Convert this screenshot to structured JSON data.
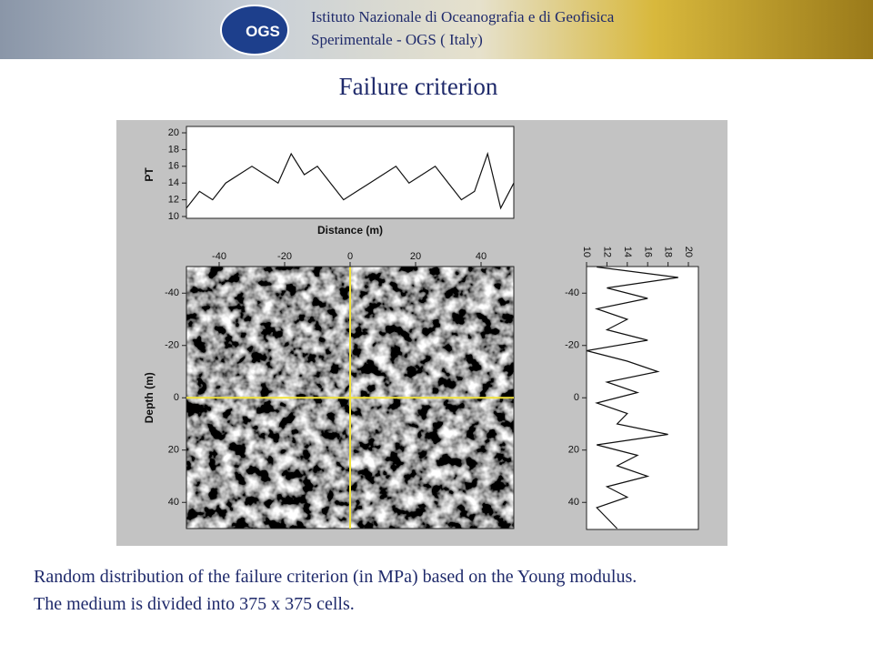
{
  "header": {
    "org_line1": "Istituto Nazionale di Oceanografia e di Geofisica",
    "org_line2": "Sperimentale - OGS ( Italy)",
    "logo": "OGS"
  },
  "title": "Failure criterion",
  "chart_data": [
    {
      "type": "line",
      "xlabel": "Distance (m)",
      "ylabel": "PT",
      "x": [
        -50,
        -46,
        -42,
        -38,
        -34,
        -30,
        -26,
        -22,
        -18,
        -14,
        -10,
        -6,
        -2,
        2,
        6,
        10,
        14,
        18,
        22,
        26,
        30,
        34,
        38,
        42,
        46,
        50
      ],
      "values": [
        11,
        13,
        12,
        14,
        15,
        16,
        15,
        14,
        17.5,
        15,
        16,
        14,
        12,
        13,
        14,
        15,
        16,
        14,
        15,
        16,
        14,
        12,
        13,
        17.5,
        11,
        14
      ],
      "xlim": [
        -50,
        50
      ],
      "ylim": [
        10,
        20
      ],
      "yticks": [
        10,
        12,
        14,
        16,
        18,
        20
      ],
      "color": "#111111"
    },
    {
      "type": "image",
      "ylabel": "Depth (m)",
      "xlim": [
        -50,
        50
      ],
      "ylim": [
        -50,
        50
      ],
      "y_inverted": true,
      "xticks": [
        -40,
        -20,
        0,
        20,
        40
      ],
      "yticks": [
        -40,
        -20,
        0,
        20,
        40
      ],
      "crosshair": [
        0,
        0
      ],
      "crosshair_color": "#f2e33a"
    },
    {
      "type": "line",
      "orientation": "vertical",
      "y": [
        -50,
        -46,
        -42,
        -38,
        -34,
        -30,
        -26,
        -22,
        -18,
        -14,
        -10,
        -6,
        -2,
        2,
        6,
        10,
        14,
        18,
        22,
        26,
        30,
        34,
        38,
        42,
        46,
        50
      ],
      "values": [
        11,
        19,
        12,
        16,
        11,
        14,
        12,
        16,
        10,
        14,
        17,
        12,
        15,
        11,
        14,
        13,
        18,
        11,
        15,
        13,
        16,
        12,
        14,
        11,
        12,
        13
      ],
      "xlim": [
        10,
        20
      ],
      "xticks": [
        10,
        12,
        14,
        16,
        18,
        20
      ],
      "ylim": [
        -50,
        50
      ],
      "y_inverted": true,
      "yticks": [
        -40,
        -20,
        0,
        20,
        40
      ],
      "color": "#111111"
    }
  ],
  "caption": [
    "Random distribution of the failure criterion (in MPa) based on the Young modulus.",
    "The medium is divided into 375 x 375 cells."
  ]
}
